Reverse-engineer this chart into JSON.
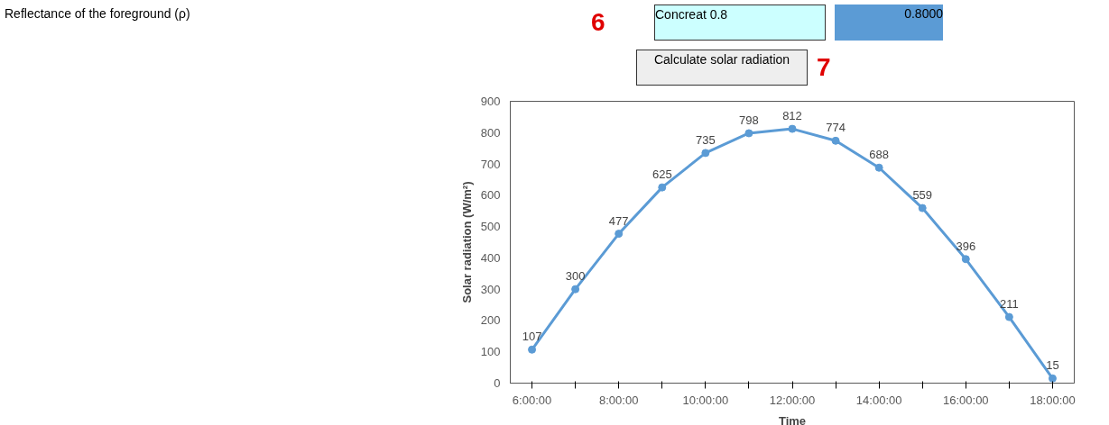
{
  "chart_data": {
    "type": "line",
    "categories": [
      "6:00:00",
      null,
      "8:00:00",
      null,
      "10:00:00",
      null,
      "12:00:00",
      null,
      "14:00:00",
      null,
      "16:00:00",
      null,
      "18:00:00"
    ],
    "series": [
      {
        "color": "#5b9bd5",
        "values": [
          107,
          300,
          477,
          625,
          735,
          798,
          812,
          774,
          688,
          559,
          396,
          211,
          15
        ]
      }
    ],
    "xlabel": "Time",
    "ylabel": "Solar radiation (W/m²)",
    "ylim": [
      0,
      900
    ],
    "yticks": [
      0,
      100,
      200,
      300,
      400,
      500,
      600,
      700,
      800,
      900
    ],
    "grid": false,
    "marker": "circle",
    "line_style": "solid",
    "data_labels": true,
    "annotations": [
      "Reflectance of the foreground (ρ)",
      "6",
      "Concreat 0.8",
      "0.8000",
      "Calculate solar radiation",
      "7"
    ]
  }
}
